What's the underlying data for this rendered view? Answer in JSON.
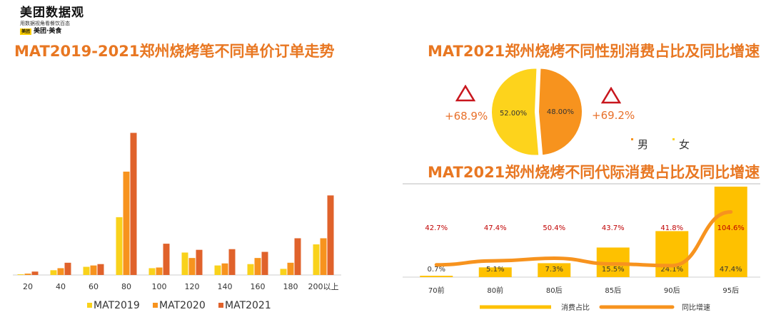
{
  "logo": {
    "name": "美团数据观",
    "slogan": "用数据视角看餐饮百态",
    "badge": "美团",
    "brand": "美团·美食"
  },
  "titles": {
    "price_chart": "MAT2019-2021郑州烧烤笔不同单价订单走势",
    "gender_chart": "MAT2021郑州烧烤不同性别消费占比及同比增速",
    "generation_chart": "MAT2021郑州烧烤不同代际消费占比及同比增速"
  },
  "chart_data": [
    {
      "type": "bar",
      "title": "MAT2019-2021郑州烧烤笔不同单价订单走势",
      "categories": [
        "20",
        "40",
        "60",
        "80",
        "100",
        "120",
        "140",
        "160",
        "180",
        "200以上"
      ],
      "series": [
        {
          "name": "MAT2019",
          "color": "#f9d21b",
          "values": [
            1,
            7,
            12,
            85,
            10,
            33,
            14,
            16,
            9,
            45
          ]
        },
        {
          "name": "MAT2020",
          "color": "#f7931e",
          "values": [
            2,
            10,
            14,
            152,
            11,
            25,
            17,
            25,
            18,
            54
          ]
        },
        {
          "name": "MAT2021",
          "color": "#e0622b",
          "values": [
            5,
            18,
            16,
            209,
            46,
            37,
            38,
            34,
            54,
            117
          ]
        }
      ],
      "ylim": [
        0,
        220
      ],
      "grid": false,
      "legend": "bottom"
    },
    {
      "type": "pie",
      "title": "MAT2021郑州烧烤不同性别消费占比及同比增速",
      "slices": [
        {
          "name": "男",
          "value": 52.0,
          "label": "52.00%",
          "color": "#fdd31c",
          "growth": "+68.9%"
        },
        {
          "name": "女",
          "value": 48.0,
          "label": "48.00%",
          "color": "#f7931e",
          "growth": "+69.2%"
        }
      ],
      "legend": "bottom-right"
    },
    {
      "type": "bar",
      "title": "MAT2021郑州烧烤不同代际消费占比及同比增速",
      "categories": [
        "70前",
        "80前",
        "80后",
        "85后",
        "90后",
        "95后"
      ],
      "series": [
        {
          "name": "消费占比",
          "type": "bar",
          "color": "#fec100",
          "values": [
            0.7,
            5.1,
            7.3,
            15.5,
            24.1,
            47.4
          ],
          "labels": [
            "0.7%",
            "5.1%",
            "7.3%",
            "15.5%",
            "24.1%",
            "47.4%"
          ]
        },
        {
          "name": "同比增速",
          "type": "line",
          "color": "#f7931e",
          "values": [
            42.7,
            47.4,
            50.4,
            43.7,
            41.8,
            104.6
          ],
          "labels": [
            "42.7%",
            "47.4%",
            "50.4%",
            "43.7%",
            "41.8%",
            "104.6%"
          ]
        }
      ],
      "legend": "bottom"
    }
  ]
}
